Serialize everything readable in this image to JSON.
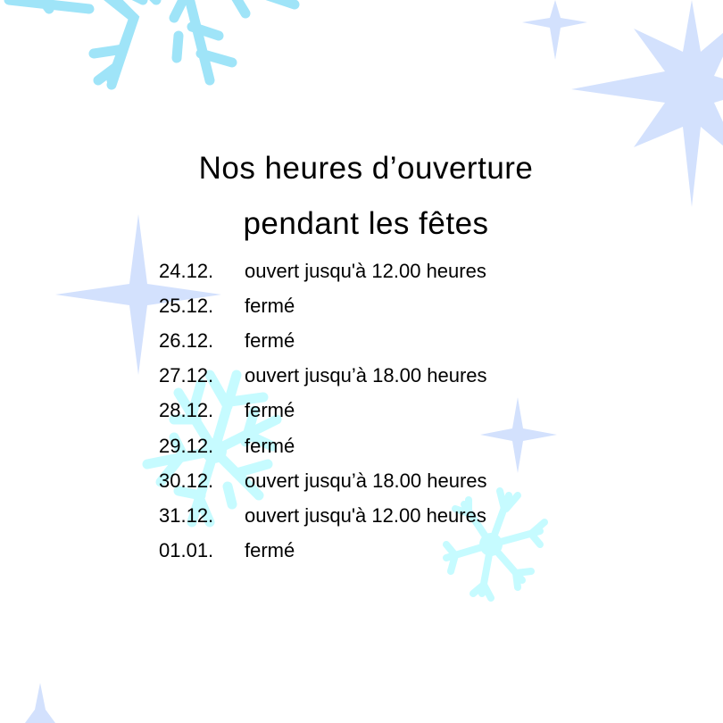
{
  "title": {
    "line1": "Nos heures d’ouverture",
    "line2": "pendant les fêtes"
  },
  "schedule": [
    {
      "date": "24.12.",
      "status": "ouvert jusqu'à 12.00 heures"
    },
    {
      "date": "25.12.",
      "status": "fermé"
    },
    {
      "date": "26.12.",
      "status": "fermé"
    },
    {
      "date": "27.12.",
      "status": "ouvert jusqu’à 18.00 heures"
    },
    {
      "date": "28.12.",
      "status": "fermé"
    },
    {
      "date": "29.12.",
      "status": "fermé"
    },
    {
      "date": "30.12.",
      "status": "ouvert jusqu’à 18.00 heures"
    },
    {
      "date": "31.12.",
      "status": "ouvert jusqu'à 12.00 heures"
    },
    {
      "date": "01.01.",
      "status": "fermé"
    }
  ],
  "colors": {
    "star": "#d3e1fd",
    "snowflake_top": "#9fe4f8",
    "snowflake_light": "#c6fbff",
    "text": "#000000"
  },
  "decorations": [
    "snowflake-icon",
    "star-icon"
  ]
}
